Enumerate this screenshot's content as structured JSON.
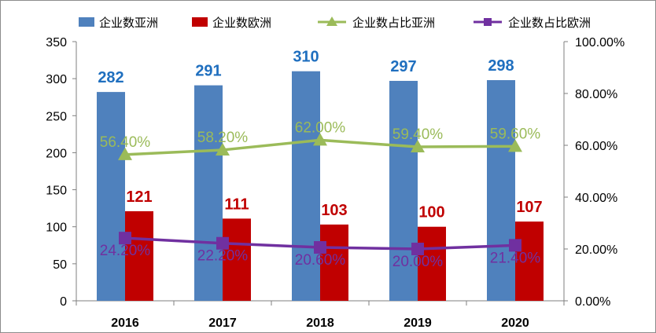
{
  "chart_data": {
    "type": "bar",
    "categories": [
      "2016",
      "2017",
      "2018",
      "2019",
      "2020"
    ],
    "series": [
      {
        "name": "企业数亚洲",
        "kind": "bar",
        "axis": "left",
        "color": "#4f81bd",
        "label_color": "#1f6fbf",
        "values": [
          282,
          291,
          310,
          297,
          298
        ],
        "labels": [
          "282",
          "291",
          "310",
          "297",
          "298"
        ]
      },
      {
        "name": "企业数欧洲",
        "kind": "bar",
        "axis": "left",
        "color": "#c00000",
        "label_color": "#c00000",
        "values": [
          121,
          111,
          103,
          100,
          107
        ],
        "labels": [
          "121",
          "111",
          "103",
          "100",
          "107"
        ]
      },
      {
        "name": "企业数占比亚洲",
        "kind": "line",
        "marker": "triangle",
        "axis": "right",
        "color": "#9bbb59",
        "label_color": "#9bbb59",
        "values": [
          56.4,
          58.2,
          62.0,
          59.4,
          59.6
        ],
        "labels": [
          "56.40%",
          "58.20%",
          "62.00%",
          "59.40%",
          "59.60%"
        ]
      },
      {
        "name": "企业数占比欧洲",
        "kind": "line",
        "marker": "square",
        "axis": "right",
        "color": "#7030a0",
        "label_color": "#7030a0",
        "values": [
          24.2,
          22.2,
          20.6,
          20.0,
          21.4
        ],
        "labels": [
          "24.20%",
          "22.20%",
          "20.60%",
          "20.00%",
          "21.40%"
        ]
      }
    ],
    "left_axis": {
      "ylim": [
        0,
        350
      ],
      "ticks": [
        "0",
        "50",
        "100",
        "150",
        "200",
        "250",
        "300",
        "350"
      ]
    },
    "right_axis": {
      "ylim": [
        0,
        100
      ],
      "ticks": [
        "0.00%",
        "20.00%",
        "40.00%",
        "60.00%",
        "80.00%",
        "100.00%"
      ]
    },
    "legend_position": "top",
    "grid": false
  }
}
